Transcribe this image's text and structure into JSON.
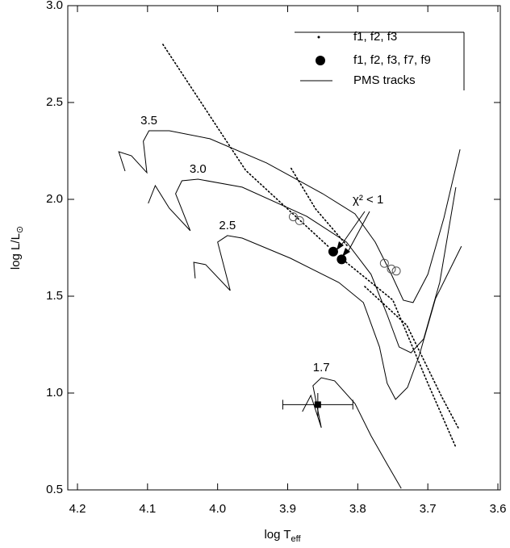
{
  "chart_data": {
    "type": "hr-diagram",
    "xlabel": "log T",
    "xlabel_sub": "eff",
    "ylabel": "log L/L",
    "ylabel_sub": "⊙",
    "xlim": [
      4.2,
      3.6
    ],
    "ylim": [
      0.5,
      3.0
    ],
    "xticks": [
      4.2,
      4.1,
      {
        "value": 4,
        "label": "4.0"
      },
      3.9,
      3.8,
      3.7,
      3.6
    ],
    "yticks": [
      0.5,
      {
        "value": 1,
        "label": "1.0"
      },
      1.5,
      {
        "value": 2,
        "label": "2.0"
      },
      2.5,
      {
        "value": 3,
        "label": "3.0"
      }
    ],
    "series": [
      {
        "name": "f1, f2, f3",
        "color": "#000000",
        "style": "dotted",
        "x": [
          4.078,
          3.96,
          3.84,
          null,
          3.895,
          3.86,
          3.815,
          null,
          3.825,
          3.75,
          3.7,
          3.66,
          null,
          3.79,
          3.73,
          3.68,
          3.655
        ],
        "values": [
          2.8,
          2.15,
          1.75,
          null,
          2.16,
          1.95,
          1.76,
          null,
          1.7,
          1.48,
          1.05,
          0.72,
          null,
          1.55,
          1.35,
          0.98,
          0.81
        ]
      },
      {
        "name": "f1, f2, f3, f7, f9",
        "color": "#000000",
        "style": "points",
        "x": [
          3.835,
          3.823
        ],
        "values": [
          1.73,
          1.69
        ]
      },
      {
        "name": "PMS tracks",
        "color": "#000000",
        "style": "line",
        "tracks": [
          {
            "label": "3.5",
            "x": [
              4.132,
              4.141,
              4.123,
              4.101,
              4.106,
              4.098,
              4.069,
              4.011,
              3.93,
              3.85,
              3.804,
              3.775,
              3.752,
              3.735,
              3.721,
              3.7,
              3.677,
              3.654
            ],
            "values": [
              2.146,
              2.246,
              2.225,
              2.138,
              2.3,
              2.354,
              2.354,
              2.313,
              2.188,
              2.029,
              1.925,
              1.779,
              1.613,
              1.479,
              1.467,
              1.613,
              1.904,
              2.258
            ]
          },
          {
            "label": "3.0",
            "x": [
              4.099,
              4.089,
              4.069,
              4.039,
              4.06,
              4.051,
              4.028,
              3.965,
              3.873,
              3.816,
              3.781,
              3.758,
              3.741,
              3.724,
              3.706,
              3.683,
              3.66
            ],
            "values": [
              1.979,
              2.071,
              1.954,
              1.838,
              2.029,
              2.096,
              2.104,
              2.063,
              1.913,
              1.779,
              1.613,
              1.404,
              1.238,
              1.208,
              1.279,
              1.571,
              2.063
            ]
          },
          {
            "label": "2.5",
            "x": [
              4.032,
              4.034,
              4.017,
              3.982,
              4.0,
              3.986,
              3.965,
              3.896,
              3.827,
              3.792,
              3.769,
              3.758,
              3.746,
              3.729,
              3.712,
              3.689,
              3.652
            ],
            "values": [
              1.592,
              1.675,
              1.663,
              1.529,
              1.779,
              1.813,
              1.8,
              1.696,
              1.571,
              1.467,
              1.238,
              1.05,
              0.967,
              1.029,
              1.196,
              1.488,
              1.758
            ]
          },
          {
            "label": "1.7",
            "x": [
              3.879,
              3.867,
              3.852,
              3.864,
              3.852,
              3.833,
              3.804,
              3.781,
              3.758,
              3.738
            ],
            "values": [
              0.904,
              0.988,
              0.821,
              1.038,
              1.079,
              1.063,
              0.946,
              0.779,
              0.633,
              0.508
            ]
          }
        ]
      }
    ],
    "open_circles": {
      "x": [
        3.892,
        3.883,
        3.762,
        3.752,
        3.745
      ],
      "values": [
        1.91,
        1.89,
        1.67,
        1.64,
        1.63
      ]
    },
    "observed": {
      "x": 3.857,
      "value": 0.94,
      "xerr": 0.05,
      "yerr": 0.06
    },
    "annotation": "χ² < 1"
  }
}
